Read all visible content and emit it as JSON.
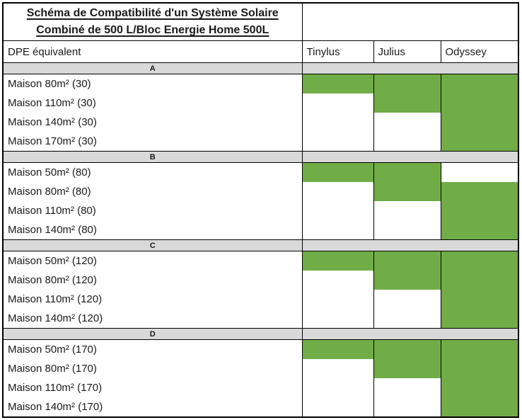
{
  "header": {
    "title_line1": "Schéma de Compatibilité d'un Système Solaire",
    "title_line2": "Combiné de 500 L/Bloc Energie Home 500L",
    "row_header": "DPE équivalent",
    "products": [
      "Tinylus",
      "Julius",
      "Odyssey"
    ]
  },
  "colors": {
    "compatible_fill": "#70AD47",
    "incompatible_fill": "#FFFFFF",
    "section_band_fill": "#D9D9D9",
    "border": "#000000"
  },
  "sections": [
    {
      "label": "A",
      "rows": [
        {
          "label": "Maison 80m² (30)",
          "compat": [
            true,
            true,
            true
          ]
        },
        {
          "label": "Maison 110m² (30)",
          "compat": [
            false,
            true,
            true
          ]
        },
        {
          "label": "Maison 140m² (30)",
          "compat": [
            false,
            false,
            true
          ]
        },
        {
          "label": "Maison 170m² (30)",
          "compat": [
            false,
            false,
            true
          ]
        }
      ]
    },
    {
      "label": "B",
      "rows": [
        {
          "label": "Maison 50m² (80)",
          "compat": [
            true,
            true,
            false
          ]
        },
        {
          "label": "Maison 80m² (80)",
          "compat": [
            false,
            true,
            true
          ]
        },
        {
          "label": "Maison 110m² (80)",
          "compat": [
            false,
            false,
            true
          ]
        },
        {
          "label": "Maison 140m² (80)",
          "compat": [
            false,
            false,
            true
          ]
        }
      ]
    },
    {
      "label": "C",
      "rows": [
        {
          "label": "Maison 50m² (120)",
          "compat": [
            true,
            true,
            true
          ]
        },
        {
          "label": "Maison 80m² (120)",
          "compat": [
            false,
            true,
            true
          ]
        },
        {
          "label": "Maison 110m² (120)",
          "compat": [
            false,
            false,
            true
          ]
        },
        {
          "label": "Maison 140m² (120)",
          "compat": [
            false,
            false,
            true
          ]
        }
      ]
    },
    {
      "label": "D",
      "rows": [
        {
          "label": "Maison 50m² (170)",
          "compat": [
            true,
            true,
            true
          ]
        },
        {
          "label": "Maison 80m² (170)",
          "compat": [
            false,
            true,
            true
          ]
        },
        {
          "label": "Maison 110m² (170)",
          "compat": [
            false,
            false,
            true
          ]
        },
        {
          "label": "Maison 140m² (170)",
          "compat": [
            false,
            false,
            true
          ]
        }
      ]
    }
  ]
}
